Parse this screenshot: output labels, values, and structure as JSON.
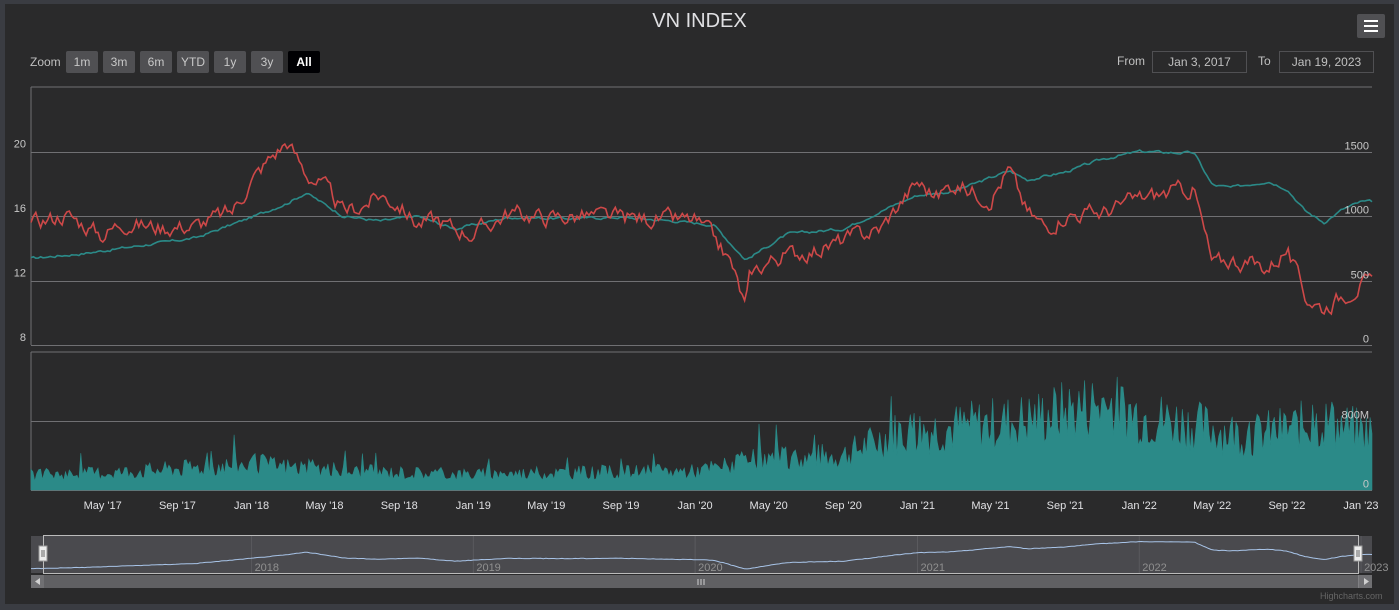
{
  "title": "VN INDEX",
  "menu_icon": "hamburger-menu-icon",
  "zoom": {
    "label": "Zoom",
    "buttons": [
      "1m",
      "3m",
      "6m",
      "YTD",
      "1y",
      "3y",
      "All"
    ],
    "selected": "All"
  },
  "range": {
    "from_label": "From",
    "from": "Jan 3, 2017",
    "to_label": "To",
    "to": "Jan 19, 2023"
  },
  "credit": "Highcharts.com",
  "colors": {
    "red_series": "#cd4848",
    "teal_series": "#2b8a88",
    "volume": "#2b8a88",
    "navigator_line": "#a8c4e8"
  },
  "chart_data": {
    "type": "line",
    "x_ticks": [
      "May '17",
      "Sep '17",
      "Jan '18",
      "May '18",
      "Sep '18",
      "Jan '19",
      "May '19",
      "Sep '19",
      "Jan '20",
      "May '20",
      "Sep '20",
      "Jan '21",
      "May '21",
      "Sep '21",
      "Jan '22",
      "May '22",
      "Sep '22",
      "Jan '23"
    ],
    "left_axis": {
      "ticks": [
        "20",
        "16",
        "12",
        "8"
      ],
      "range": [
        8,
        24
      ]
    },
    "right_axis": {
      "ticks": [
        "1500",
        "1000",
        "500",
        "0"
      ],
      "range": [
        0,
        2000
      ]
    },
    "series": [
      {
        "axis": "left",
        "x": [
          "2017-01",
          "2017-03",
          "2017-05",
          "2017-06",
          "2017-08",
          "2017-10",
          "2017-12",
          "2018-01",
          "2018-02",
          "2018-03",
          "2018-04",
          "2018-05",
          "2018-06",
          "2018-07",
          "2018-08",
          "2018-09",
          "2018-10",
          "2018-11",
          "2018-12",
          "2019-01",
          "2019-03",
          "2019-05",
          "2019-07",
          "2019-09",
          "2019-11",
          "2020-01",
          "2020-02",
          "2020-03",
          "2020-03-24",
          "2020-04",
          "2020-05",
          "2020-06",
          "2020-08",
          "2020-09",
          "2020-11",
          "2020-12",
          "2021-01",
          "2021-02",
          "2021-03",
          "2021-05",
          "2021-06",
          "2021-07",
          "2021-08",
          "2021-09",
          "2021-11",
          "2022-01",
          "2022-03",
          "2022-04",
          "2022-05",
          "2022-06",
          "2022-08",
          "2022-09",
          "2022-10",
          "2022-11",
          "2022-12",
          "2023-01"
        ],
        "values": [
          15.5,
          16.1,
          14.8,
          15.6,
          15.3,
          15.4,
          16.3,
          18.2,
          19.6,
          20.6,
          18.6,
          17.8,
          16.2,
          16.6,
          17.3,
          16.7,
          15.5,
          15.8,
          15.2,
          14.9,
          16.2,
          15.9,
          16.0,
          15.9,
          15.8,
          15.7,
          14.6,
          13.0,
          10.3,
          12.4,
          13.2,
          13.6,
          14.0,
          14.5,
          15.2,
          16.7,
          18.1,
          17.2,
          18.0,
          17.1,
          18.9,
          16.2,
          15.3,
          16.1,
          16.2,
          17.1,
          17.5,
          17.7,
          13.0,
          13.3,
          12.8,
          13.9,
          11.0,
          10.3,
          11.1,
          11.8
        ]
      },
      {
        "axis": "right",
        "x": [
          "2017-01",
          "2017-04",
          "2017-07",
          "2017-10",
          "2018-01",
          "2018-03",
          "2018-04",
          "2018-06",
          "2018-08",
          "2018-10",
          "2018-12",
          "2019-03",
          "2019-06",
          "2019-09",
          "2019-12",
          "2020-02",
          "2020-03-24",
          "2020-06",
          "2020-09",
          "2020-12",
          "2021-01",
          "2021-03",
          "2021-06",
          "2021-07",
          "2021-09",
          "2021-11",
          "2022-01",
          "2022-03",
          "2022-04",
          "2022-05",
          "2022-06",
          "2022-08",
          "2022-09",
          "2022-10",
          "2022-11",
          "2022-12",
          "2023-01"
        ],
        "values": [
          670,
          710,
          770,
          830,
          990,
          1100,
          1180,
          1000,
          960,
          1000,
          900,
          990,
          980,
          990,
          960,
          930,
          660,
          860,
          900,
          1100,
          1160,
          1190,
          1350,
          1280,
          1340,
          1440,
          1500,
          1490,
          1490,
          1240,
          1220,
          1270,
          1210,
          1040,
          950,
          1050,
          1110
        ]
      }
    ],
    "volume": {
      "axis_ticks": [
        "800M",
        "0"
      ],
      "range": [
        0,
        1600000000
      ],
      "x": [
        "2017-01",
        "2017-06",
        "2018-01",
        "2018-06",
        "2019-01",
        "2019-06",
        "2020-01",
        "2020-04",
        "2020-09",
        "2020-12",
        "2021-03",
        "2021-07",
        "2021-11",
        "2022-01",
        "2022-04",
        "2022-07",
        "2022-11",
        "2023-01"
      ],
      "values": [
        180000000,
        220000000,
        320000000,
        230000000,
        190000000,
        210000000,
        230000000,
        350000000,
        420000000,
        700000000,
        750000000,
        850000000,
        1050000000,
        900000000,
        780000000,
        650000000,
        820000000,
        700000000
      ]
    },
    "navigator": {
      "labels": [
        "2018",
        "2019",
        "2020",
        "2021",
        "2022",
        "2023"
      ]
    }
  }
}
